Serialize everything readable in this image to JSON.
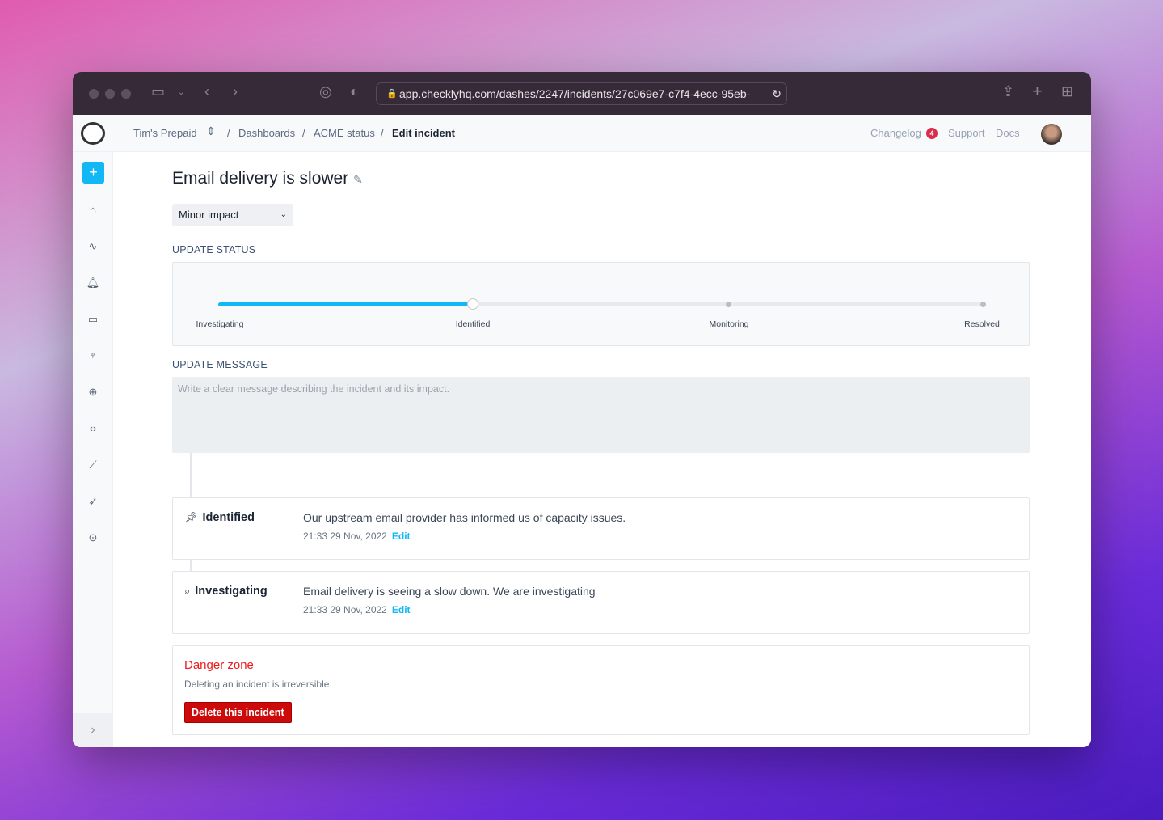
{
  "browser": {
    "url": "app.checklyhq.com/dashes/2247/incidents/27c069e7-c7f4-4ecc-95eb-"
  },
  "header": {
    "breadcrumb": [
      "Tim's Prepaid",
      "Dashboards",
      "ACME status",
      "Edit incident"
    ],
    "changelog": "Changelog",
    "changelog_count": "4",
    "support": "Support",
    "docs": "Docs"
  },
  "sidebar": {
    "items": [
      "home-icon",
      "activity-icon",
      "bell-icon",
      "monitor-icon",
      "wrench-icon",
      "globe-icon",
      "code-icon",
      "chart-icon",
      "rocket-icon",
      "location-icon"
    ]
  },
  "incident": {
    "title": "Email delivery is slower",
    "impact": "Minor impact"
  },
  "status": {
    "label": "UPDATE STATUS",
    "steps": [
      "Investigating",
      "Identified",
      "Monitoring",
      "Resolved"
    ],
    "current": "Identified",
    "progress_fraction": 0.333
  },
  "message": {
    "label": "UPDATE MESSAGE",
    "placeholder": "Write a clear message describing the incident and its impact."
  },
  "updates": [
    {
      "status": "Identified",
      "text": "Our upstream email provider has informed us of capacity issues.",
      "time": "21:33 29 Nov, 2022",
      "edit": "Edit"
    },
    {
      "status": "Investigating",
      "text": "Email delivery is seeing a slow down. We are investigating",
      "time": "21:33 29 Nov, 2022",
      "edit": "Edit"
    }
  ],
  "danger": {
    "title": "Danger zone",
    "text": "Deleting an incident is irreversible.",
    "button": "Delete this incident"
  },
  "colors": {
    "accent": "#11b8f5",
    "danger": "#cc0a0a"
  }
}
